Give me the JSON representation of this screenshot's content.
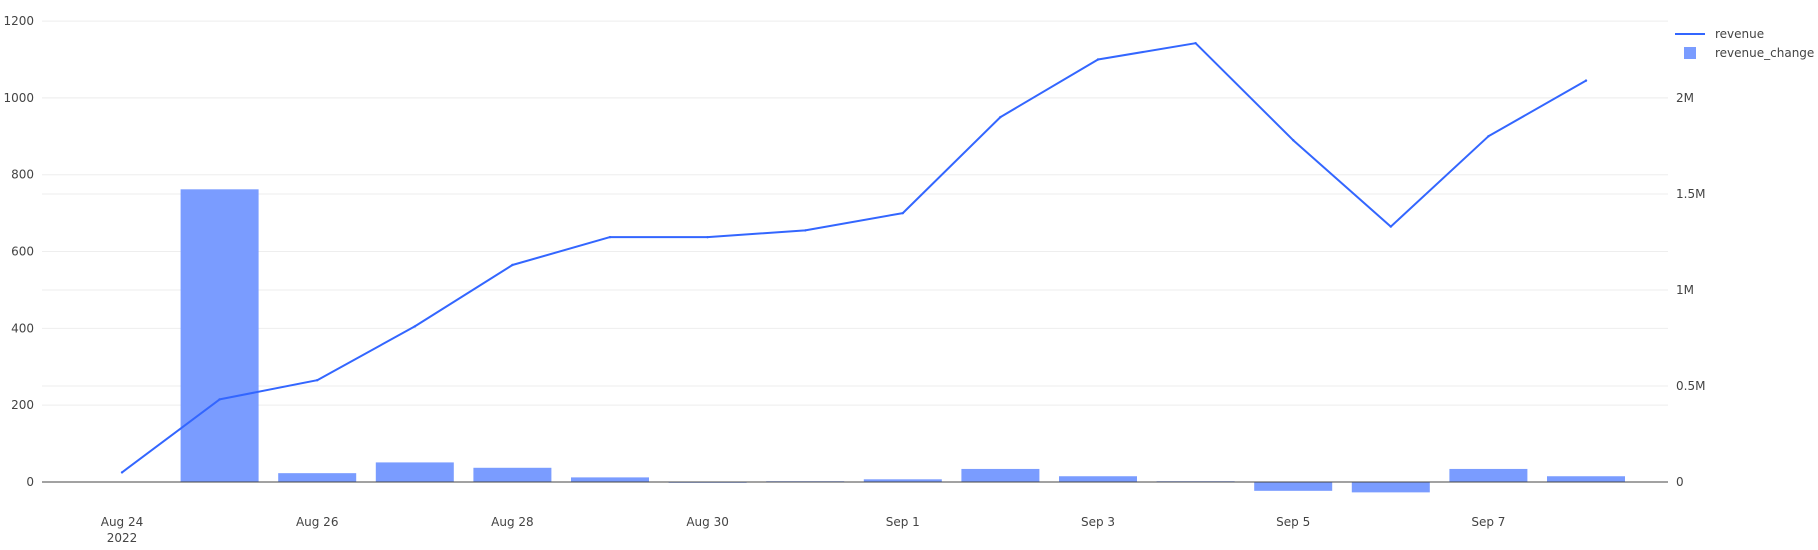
{
  "chart_data": {
    "type": "bar",
    "x": [
      "2022-08-24",
      "2022-08-25",
      "2022-08-26",
      "2022-08-27",
      "2022-08-28",
      "2022-08-29",
      "2022-08-30",
      "2022-08-31",
      "2022-09-01",
      "2022-09-02",
      "2022-09-03",
      "2022-09-04",
      "2022-09-05",
      "2022-09-06",
      "2022-09-07",
      "2022-09-08"
    ],
    "x_tick_labels": [
      {
        "date": "2022-08-24",
        "label": "Aug 24",
        "sublabel": "2022"
      },
      {
        "date": "2022-08-26",
        "label": "Aug 26"
      },
      {
        "date": "2022-08-28",
        "label": "Aug 28"
      },
      {
        "date": "2022-08-30",
        "label": "Aug 30"
      },
      {
        "date": "2022-09-01",
        "label": "Sep 1"
      },
      {
        "date": "2022-09-03",
        "label": "Sep 3"
      },
      {
        "date": "2022-09-05",
        "label": "Sep 5"
      },
      {
        "date": "2022-09-07",
        "label": "Sep 7"
      }
    ],
    "series": [
      {
        "name": "revenue",
        "type": "line",
        "axis": "right",
        "color": "#3366ff",
        "values": [
          50000,
          430000,
          530000,
          810000,
          1130000,
          1275000,
          1275000,
          1310000,
          1400000,
          1900000,
          2200000,
          2285000,
          1780000,
          1330000,
          1800000,
          2090000
        ]
      },
      {
        "name": "revenue_change",
        "type": "bar",
        "axis": "left",
        "color": "#7a9cff",
        "values": [
          null,
          762,
          23,
          51,
          37,
          12,
          0,
          2,
          7,
          34,
          15,
          2,
          -23,
          -27,
          34,
          15
        ]
      }
    ],
    "y_left": {
      "ylim": [
        -25,
        1200
      ],
      "ticks": [
        0,
        200,
        400,
        600,
        800,
        1000,
        1200
      ],
      "tick_labels": [
        "0",
        "200",
        "400",
        "600",
        "800",
        "1000",
        "1200"
      ]
    },
    "y_right": {
      "ylim": [
        -50000,
        2400000
      ],
      "ticks": [
        0,
        500000,
        1000000,
        1500000,
        2000000
      ],
      "tick_labels": [
        "0",
        "0.5M",
        "1M",
        "1.5M",
        "2M"
      ]
    },
    "grid": true,
    "legend": {
      "position": "top-right",
      "entries": [
        "revenue",
        "revenue_change"
      ]
    },
    "title": "",
    "xlabel": "",
    "ylabel": ""
  }
}
